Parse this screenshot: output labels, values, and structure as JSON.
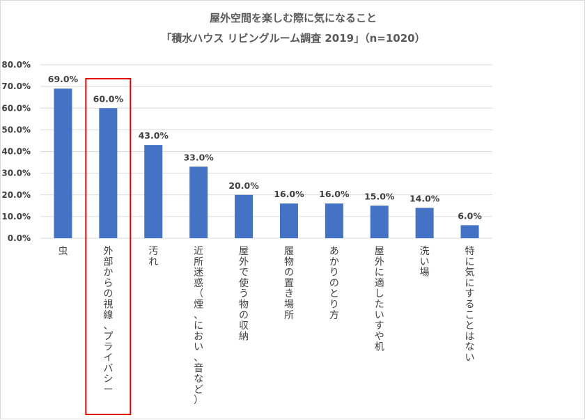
{
  "chart_data": {
    "type": "bar",
    "title": "屋外空間を楽しむ際に気になること",
    "subtitle": "「積水ハウス リビングルーム調査 2019」（n=1020）",
    "categories": [
      "虫",
      "外部からの視線、プライバシー",
      "汚れ",
      "近所迷惑（煙、におい、音など）",
      "屋外で使う物の収納",
      "履物の置き場所",
      "あかりのとり方",
      "屋外に適したいすや机",
      "洗い場",
      "特に気にすることはない"
    ],
    "values": [
      69.0,
      60.0,
      43.0,
      33.0,
      20.0,
      16.0,
      16.0,
      15.0,
      14.0,
      6.0
    ],
    "value_labels": [
      "69.0%",
      "60.0%",
      "43.0%",
      "33.0%",
      "20.0%",
      "16.0%",
      "16.0%",
      "15.0%",
      "14.0%",
      "6.0%"
    ],
    "y_ticks": [
      "0.0%",
      "10.0%",
      "20.0%",
      "30.0%",
      "40.0%",
      "50.0%",
      "60.0%",
      "70.0%",
      "80.0%"
    ],
    "ylim": [
      0,
      80
    ],
    "xlabel": "",
    "ylabel": "",
    "grid": true,
    "highlighted_category": "外部からの視線、プライバシー",
    "colors": {
      "bar": "#4472c4",
      "grid": "#d9d9d9",
      "highlight_box": "#e00000",
      "text": "#404040",
      "title": "#595959"
    }
  }
}
